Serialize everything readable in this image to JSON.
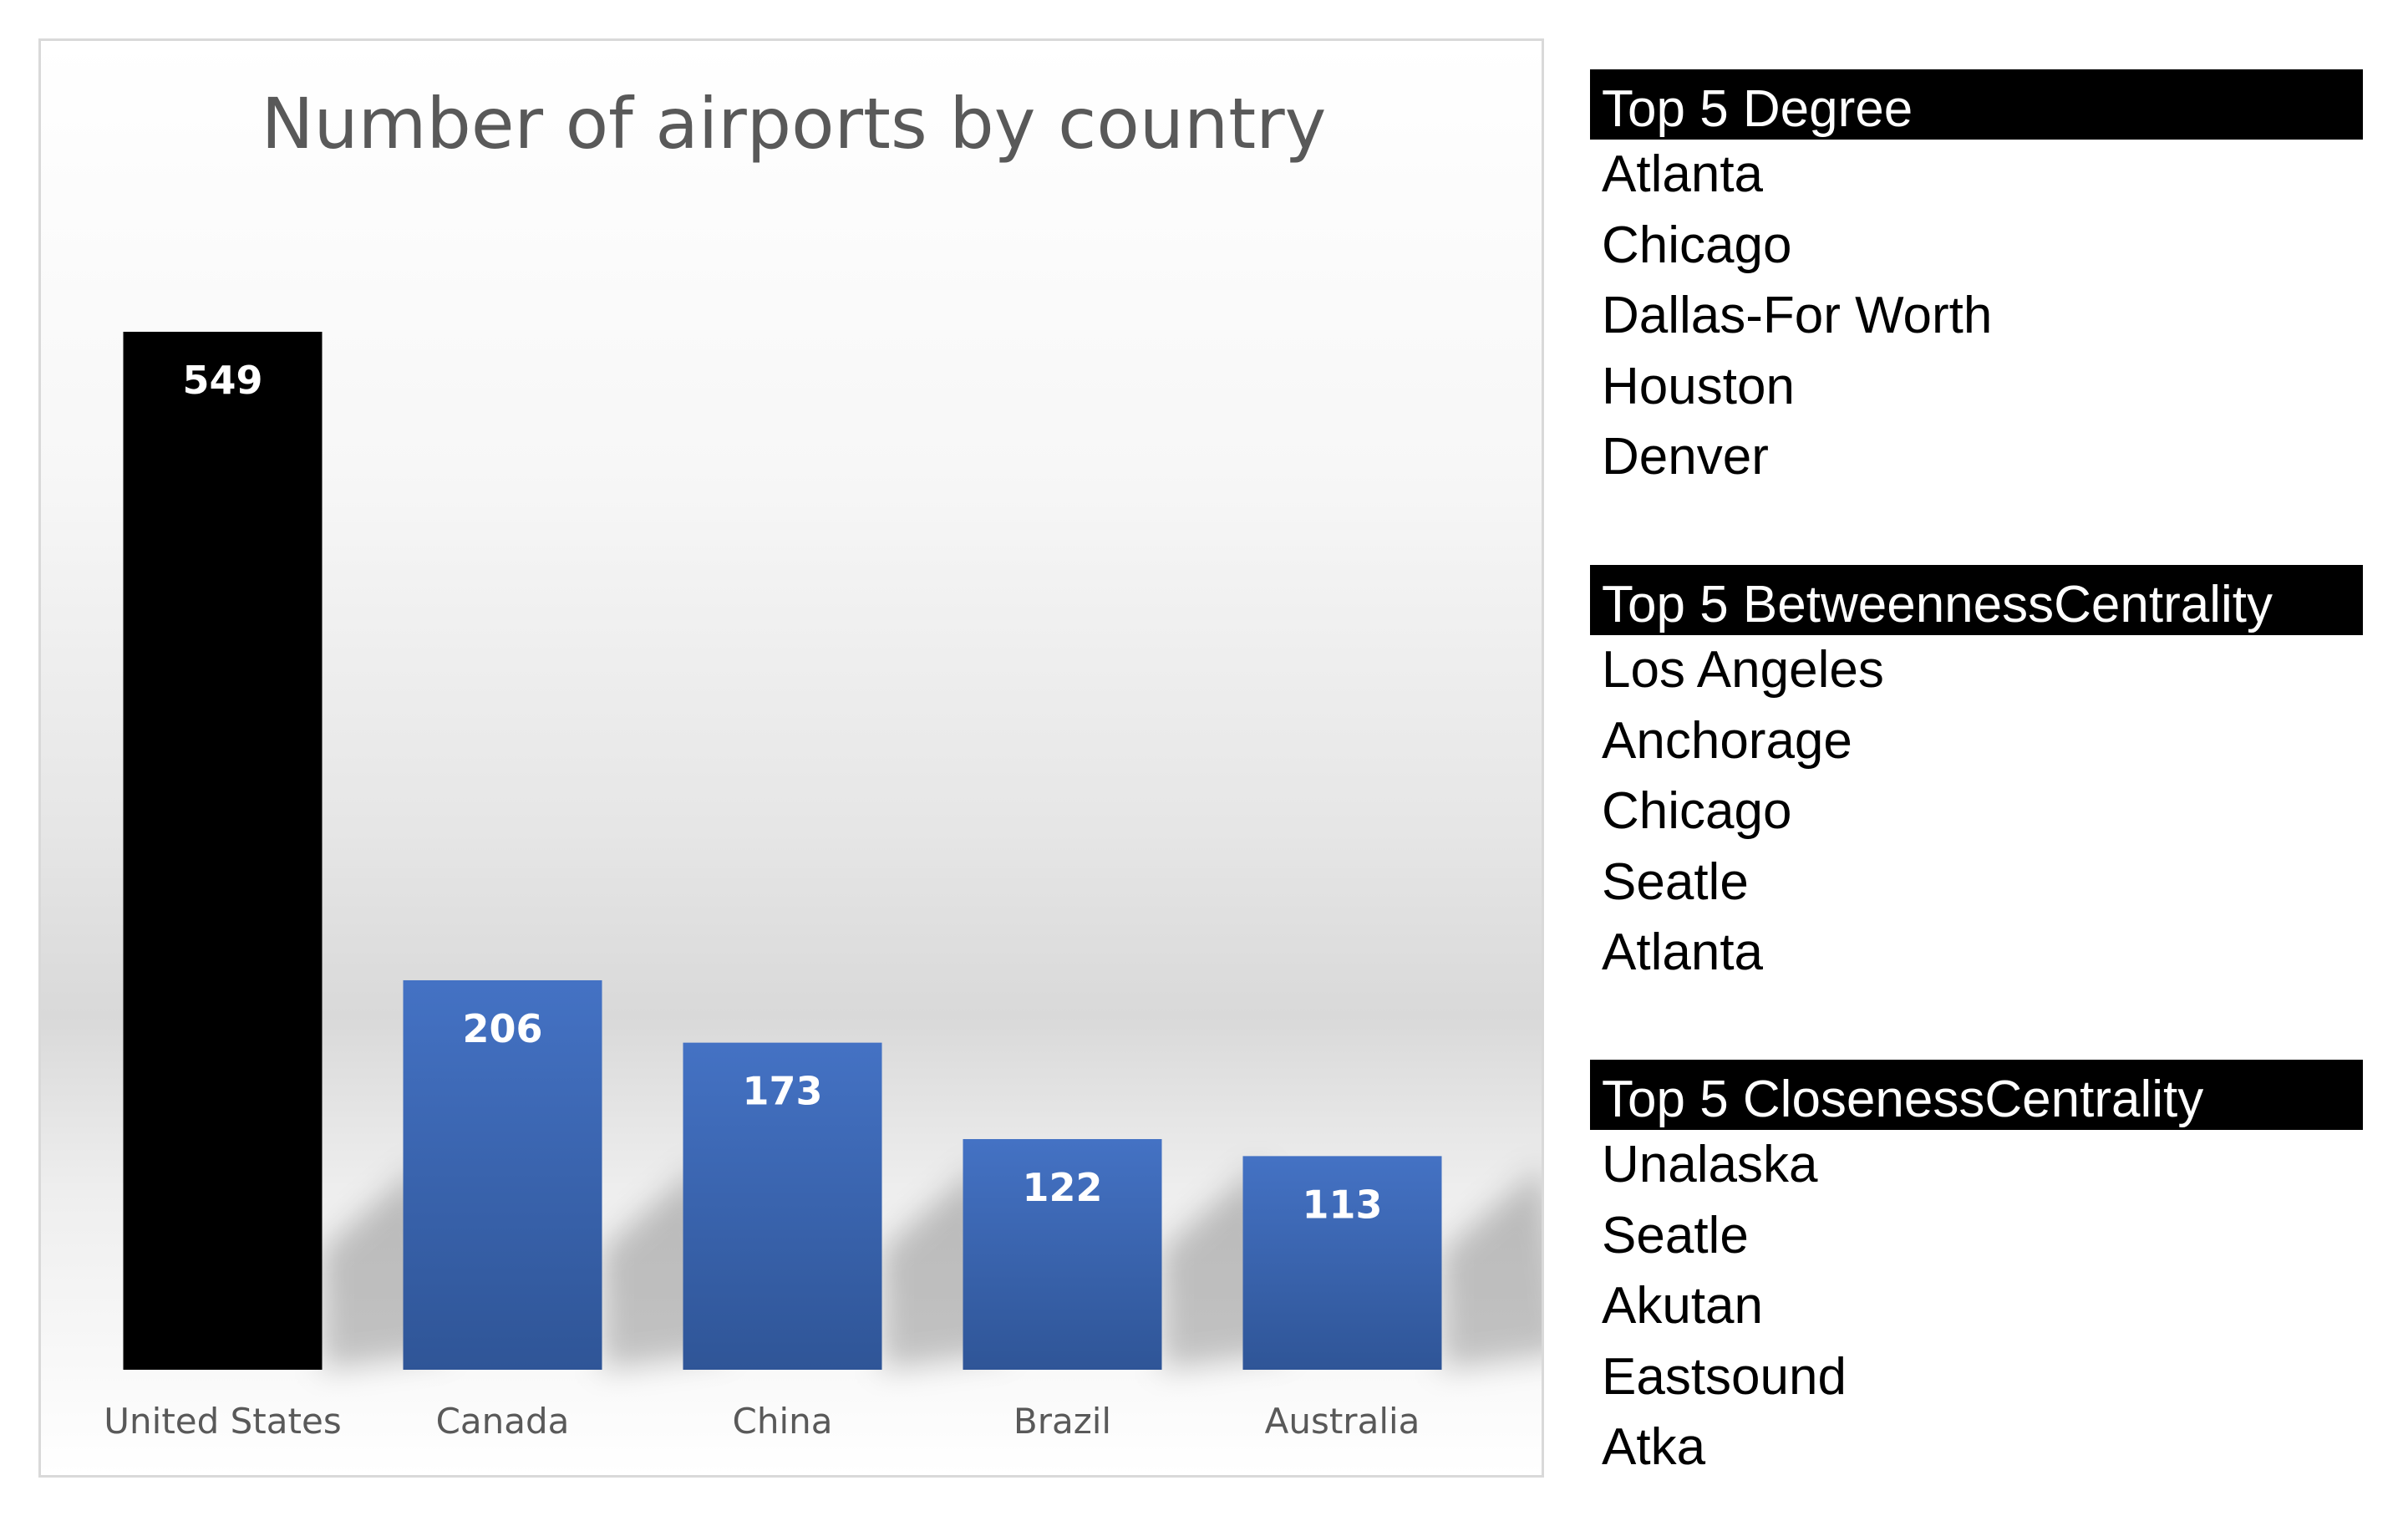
{
  "chart_data": {
    "type": "bar",
    "title": "Number of airports by country",
    "categories": [
      "United States",
      "Canada",
      "China",
      "Brazil",
      "Australia"
    ],
    "values": [
      549,
      206,
      173,
      122,
      113
    ],
    "bar_colors": [
      "#000000",
      "#4472c4",
      "#4472c4",
      "#4472c4",
      "#4472c4"
    ],
    "data_labels": true,
    "xlabel": "",
    "ylabel": "",
    "ylim": [
      0,
      600
    ],
    "grid": false,
    "legend": "none"
  },
  "lists": [
    {
      "header": "Top 5 Degree",
      "items": [
        "Atlanta",
        "Chicago",
        "Dallas-For Worth",
        "Houston",
        "Denver"
      ]
    },
    {
      "header": "Top 5 BetweennessCentrality",
      "items": [
        "Los Angeles",
        "Anchorage",
        "Chicago",
        "Seatle",
        "Atlanta"
      ]
    },
    {
      "header": "Top 5 ClosenessCentrality",
      "items": [
        "Unalaska",
        "Seatle",
        "Akutan",
        "Eastsound",
        "Atka"
      ]
    }
  ]
}
